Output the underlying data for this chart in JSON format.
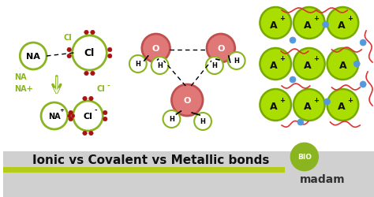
{
  "bg_color": "#ffffff",
  "bottom_bar_color": "#b5cc18",
  "bottom_bg_color": "#d8d8d8",
  "title_text": "Ionic vs Covalent vs Metallic bonds",
  "title_color": "#111111",
  "title_fontsize": 11,
  "madam_text": "madam",
  "bio_text": "BIO",
  "green_circle": "#8ab520",
  "lime_bar": "#b5cc18",
  "atom_green_face": "#ffffff",
  "atom_green_edge": "#8ab520",
  "atom_green_lime": "#aacc00",
  "atom_pink_face": "#e07878",
  "atom_pink_edge": "#c05050",
  "dot_red": "#aa1111",
  "h_edge": "#8ab520",
  "arrow_green": "#8ab520",
  "blue_e": "#5599dd",
  "red_e": "#dd3333",
  "atom_lime_face": "#aadd00",
  "atom_lime_edge": "#77aa00"
}
